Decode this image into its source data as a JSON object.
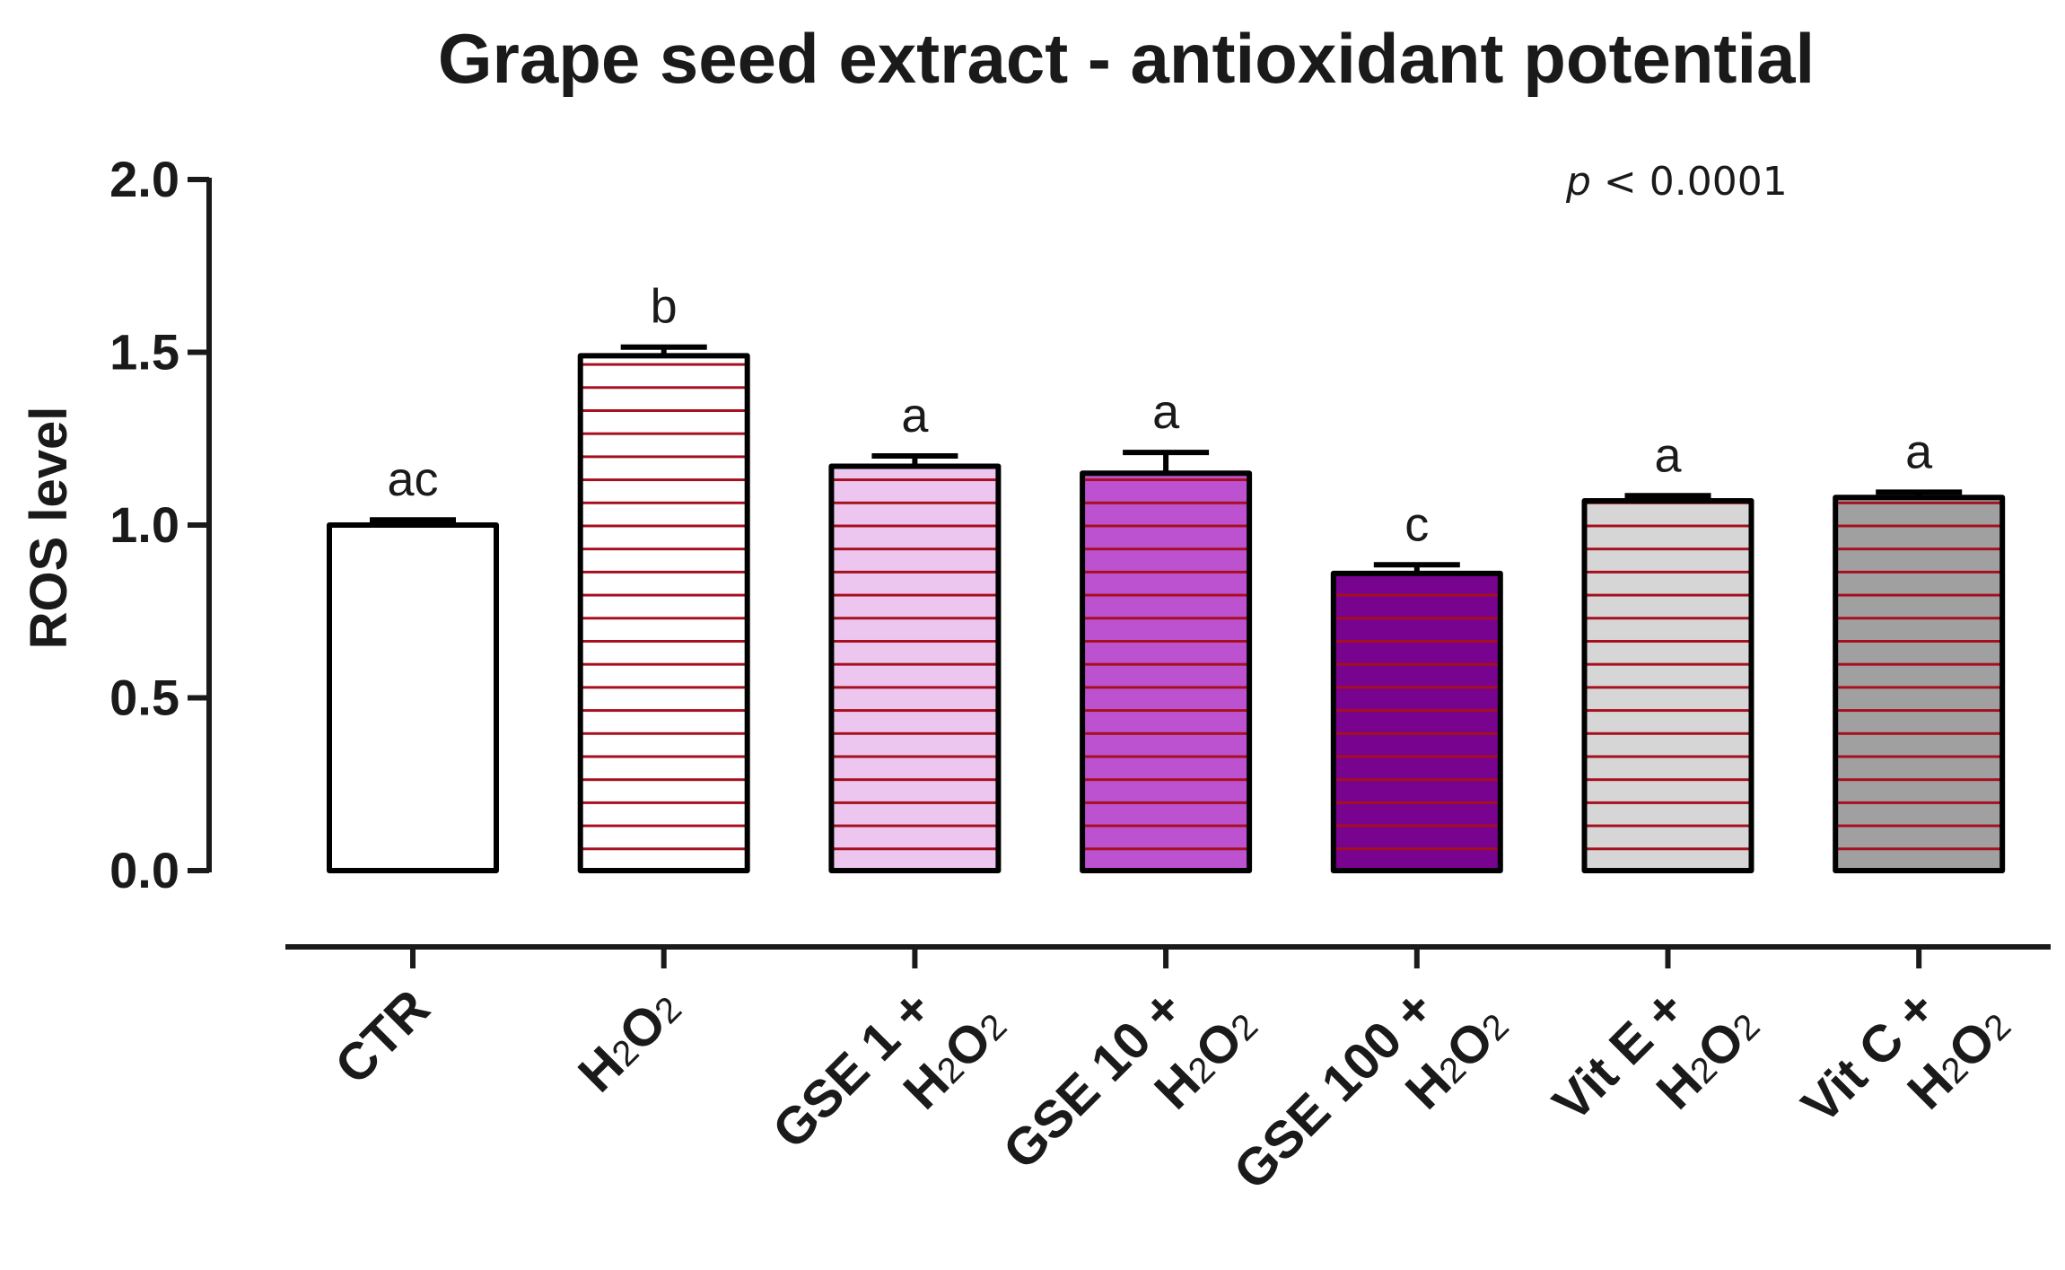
{
  "chart_data": {
    "type": "bar",
    "title": "Grape seed extract - antioxidant potential",
    "ylabel": "ROS level",
    "xlabel": "",
    "ylim": [
      0,
      2.0
    ],
    "yticks": [
      "0.0",
      "0.5",
      "1.0",
      "1.5",
      "2.0"
    ],
    "annotation": {
      "p_symbol": "p",
      "p_text": " < 0.0001"
    },
    "categories": [
      {
        "line1": "CTR",
        "line2": ""
      },
      {
        "line1": "H2O2",
        "line2": ""
      },
      {
        "line1": "GSE 1 +",
        "line2": "H2O2"
      },
      {
        "line1": "GSE 10 +",
        "line2": "H2O2"
      },
      {
        "line1": "GSE 100 +",
        "line2": "H2O2"
      },
      {
        "line1": "Vit E +",
        "line2": "H2O2"
      },
      {
        "line1": "Vit C +",
        "line2": "H2O2"
      }
    ],
    "values": [
      1.0,
      1.49,
      1.17,
      1.15,
      0.86,
      1.07,
      1.08
    ],
    "errors": [
      0.015,
      0.025,
      0.03,
      0.06,
      0.025,
      0.015,
      0.015
    ],
    "significance_letters": [
      "ac",
      "b",
      "a",
      "a",
      "c",
      "a",
      "a"
    ],
    "bar_fill_colors": [
      "#ffffff",
      "#ffffff",
      "#ecc6ee",
      "#bd52d1",
      "#77038f",
      "#d6d6d6",
      "#a0a0a0"
    ],
    "bar_hatch": [
      false,
      true,
      true,
      true,
      true,
      true,
      true
    ],
    "hatch_color": "#a50f1e",
    "bar_outline_color": "#000000",
    "grid": false,
    "legend": "none"
  }
}
